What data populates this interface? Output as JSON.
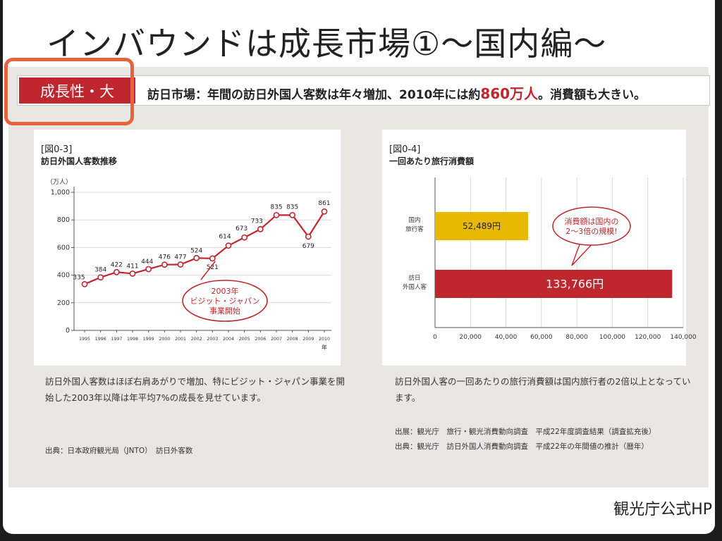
{
  "slide": {
    "title": "インバウンドは成長市場①～国内編～",
    "footer": "観光庁公式HP"
  },
  "banner": {
    "tag": "成長性・大",
    "text_before": "訪日市場：年間の訪日外国人客数は年々増加、2010年には約",
    "highlight": "860万人",
    "text_after": "。消費額も大きい。"
  },
  "left_panel": {
    "fig_label": "[図0-3]",
    "fig_title": "訪日外国人客数推移",
    "description": "訪日外国人客数はほぼ右肩あがりで増加、特にビジット・ジャパン事業を開始した2003年以降は年平均7%の成長を見せています。",
    "source": "出典：日本政府観光局（JNTO）　訪日外客数"
  },
  "right_panel": {
    "fig_label": "[図0-4]",
    "fig_title": "一回あたり旅行消費額",
    "description": "訪日外国人客の一回あたりの旅行消費額は国内旅行者の2倍以上となっています。",
    "source_1": "出展：観光庁　旅行・観光消費動向調査　平成22年度調査結果（調査拡充後）",
    "source_2": "出典：観光庁　訪日外国人消費動向調査　平成22年の年間値の推計（暦年）"
  },
  "colors": {
    "accent_red": "#c0262d",
    "highlight_orange": "#e7633d",
    "bar_yellow": "#e9b800",
    "panel_bg": "#e9e7e2"
  },
  "chart_data": [
    {
      "type": "line",
      "title": "訪日外国人客数推移",
      "ylabel": "（万人）",
      "xlabel": "年",
      "x": [
        "1995",
        "1996",
        "1997",
        "1998",
        "1999",
        "2000",
        "2001",
        "2002",
        "2003",
        "2004",
        "2005",
        "2006",
        "2007",
        "2008",
        "2009",
        "2010"
      ],
      "values": [
        335,
        384,
        422,
        411,
        444,
        476,
        477,
        524,
        521,
        614,
        673,
        733,
        835,
        835,
        679,
        861
      ],
      "ylim": [
        0,
        1000
      ],
      "yticks": [
        "0",
        "200",
        "400",
        "600",
        "800",
        "1,000"
      ],
      "annotation": [
        "2003年",
        "ビジット・ジャパン",
        "事業開始"
      ],
      "grid": true
    },
    {
      "type": "bar",
      "orientation": "horizontal",
      "title": "一回あたり旅行消費額",
      "categories": [
        [
          "国内",
          "旅行客"
        ],
        [
          "訪日",
          "外国人客"
        ]
      ],
      "values": [
        52489,
        133766
      ],
      "value_labels": [
        "52,489円",
        "133,766円"
      ],
      "xlim": [
        0,
        140000
      ],
      "xticks": [
        "0",
        "20,000",
        "40,000",
        "60,000",
        "80,000",
        "100,000",
        "120,000",
        "140,000"
      ],
      "annotation": [
        "消費額は国内の",
        "2～3倍の規模!"
      ],
      "grid": true
    }
  ]
}
